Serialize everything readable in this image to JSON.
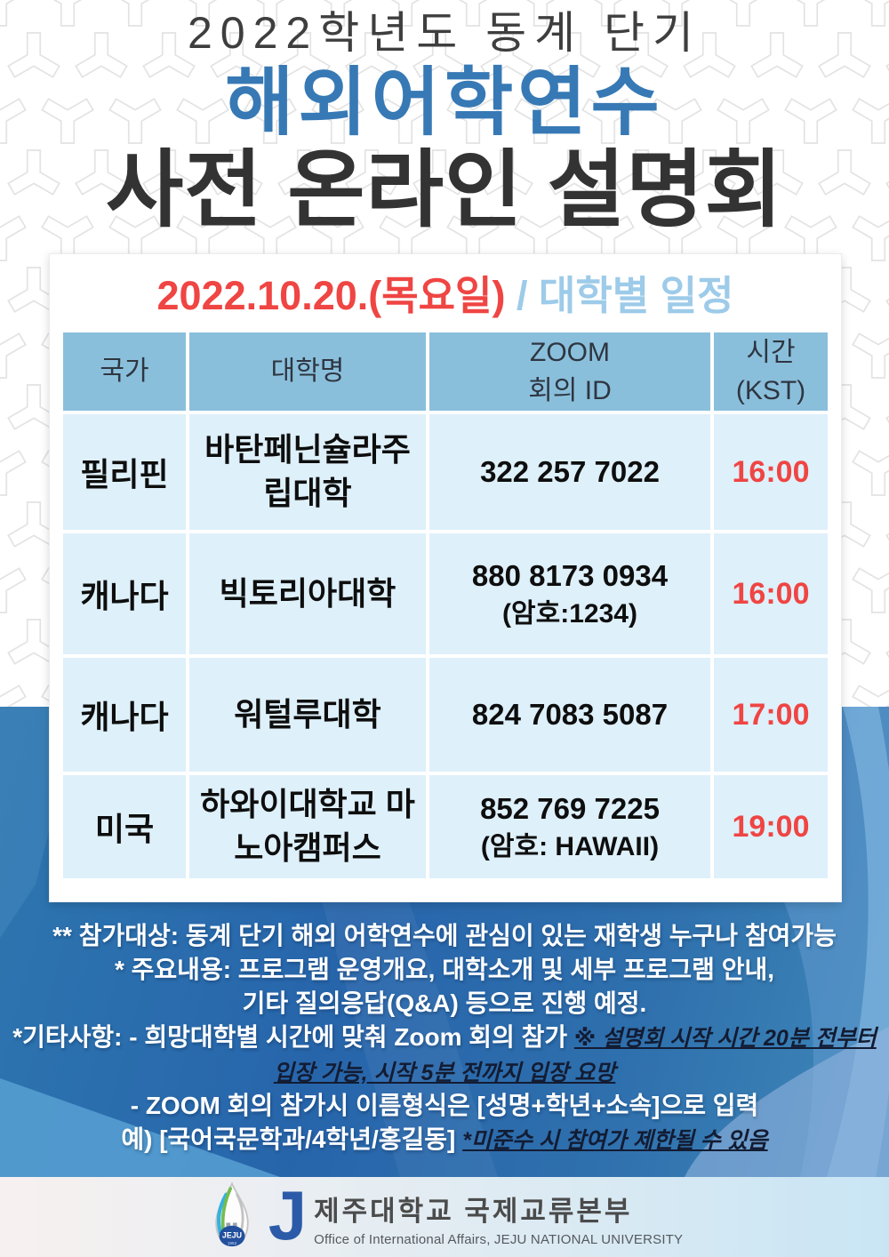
{
  "header": {
    "subtitle": "2022학년도 동계 단기",
    "title_line1": "해외어학연수",
    "title_line2": "사전 온라인 설명회"
  },
  "schedule_card": {
    "date_heading": {
      "date": "2022.10.20.(목요일)",
      "separator": " / ",
      "label": "대학별 일정"
    },
    "table": {
      "columns": [
        [
          "국가"
        ],
        [
          "대학명"
        ],
        [
          "ZOOM",
          "회의 ID"
        ],
        [
          "시간",
          "(KST)"
        ]
      ],
      "rows": [
        {
          "country": "필리핀",
          "university": "바탄페닌슐라주립대학",
          "zoom_id": "322 257 7022",
          "zoom_note": "",
          "time": "16:00"
        },
        {
          "country": "캐나다",
          "university": "빅토리아대학",
          "zoom_id": "880 8173 0934",
          "zoom_note": "(암호:1234)",
          "time": "16:00"
        },
        {
          "country": "캐나다",
          "university": "워털루대학",
          "zoom_id": "824 7083 5087",
          "zoom_note": "",
          "time": "17:00"
        },
        {
          "country": "미국",
          "university": "하와이대학교 마노아캠퍼스",
          "zoom_id": "852 769 7225",
          "zoom_note": "(암호: HAWAII)",
          "time": "19:00"
        }
      ]
    }
  },
  "notes": {
    "lines": [
      {
        "segments": [
          {
            "text": "** 참가대상:  동계 단기 해외 어학연수에 관심이 있는 재학생 누구나 참여가능",
            "style": "white"
          }
        ]
      },
      {
        "segments": [
          {
            "text": "* 주요내용: 프로그램 운영개요, 대학소개 및 세부 프로그램 안내,",
            "style": "white"
          }
        ]
      },
      {
        "segments": [
          {
            "text": "기타 질의응답(Q&A) 등으로 진행 예정.",
            "style": "white"
          }
        ]
      },
      {
        "segments": [
          {
            "text": "*기타사항: -  희망대학별 시간에 맞춰 Zoom 회의 참가 ",
            "style": "white"
          },
          {
            "text": "※ 설명회 시작 시간 20분 전부터",
            "style": "dark"
          }
        ]
      },
      {
        "segments": [
          {
            "text": "입장 가능, 시작 5분 전까지 입장 요망",
            "style": "dark"
          }
        ]
      },
      {
        "segments": [
          {
            "text": "- ZOOM 회의 참가시 이름형식은 [성명+학년+소속]으로 입력",
            "style": "white"
          }
        ]
      },
      {
        "segments": [
          {
            "text": "예) [국어국문학과/4학년/홍길동]  ",
            "style": "white"
          },
          {
            "text": "*미준수 시 참여가 제한될 수 있음",
            "style": "dark"
          }
        ]
      }
    ]
  },
  "footer": {
    "org_name_korean": "제주대학교 국제교류본부",
    "org_name_english": "Office of International Affairs, JEJU NATIONAL UNIVERSITY",
    "emblem_text": "JEJU",
    "emblem_year": "1952",
    "logo_letter": "J"
  },
  "colors": {
    "accent_red": "#ef4543",
    "title_blue": "#3779b5",
    "light_blue": "#9dcbe9",
    "table_header_bg": "#8abfdc",
    "table_row_bg": "#def0fa",
    "deep_blue_bg": "#2a68ae",
    "notes_dark": "#131c33"
  }
}
